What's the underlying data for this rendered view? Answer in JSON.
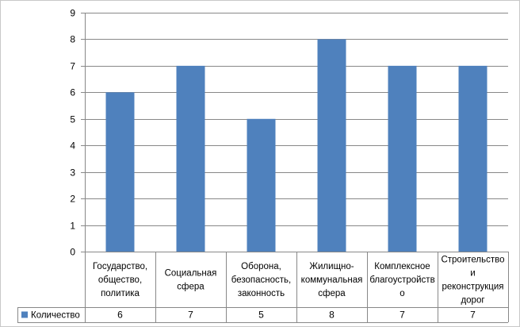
{
  "chart_data": {
    "type": "bar",
    "categories": [
      [
        "Государство,",
        "общество,",
        "политика"
      ],
      [
        "Социальная",
        "сфера"
      ],
      [
        "Оборона,",
        "безопасность,",
        "законность"
      ],
      [
        "Жилищно-",
        "коммунальная",
        "сфера"
      ],
      [
        "Комплексное",
        "благоустройств",
        "о"
      ],
      [
        "Строительство",
        "и",
        "реконструкция",
        "дорог"
      ]
    ],
    "series": [
      {
        "name": "Количество",
        "values": [
          6,
          7,
          5,
          8,
          7,
          7
        ],
        "color": "#4F81BD"
      }
    ],
    "ylim": [
      0,
      9
    ],
    "yticks": [
      0,
      1,
      2,
      3,
      4,
      5,
      6,
      7,
      8,
      9
    ],
    "grid": true,
    "legend": "data-table-left"
  }
}
